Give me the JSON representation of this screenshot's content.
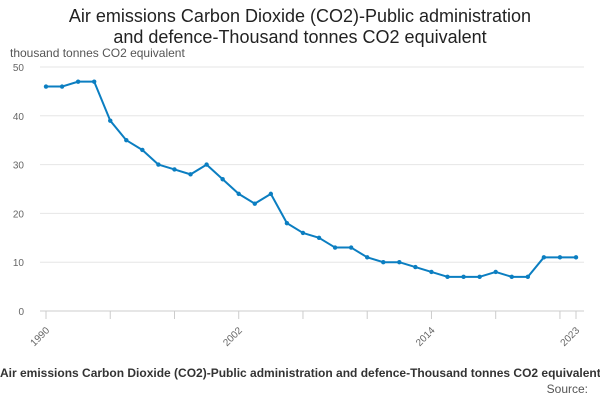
{
  "chart_data": {
    "type": "line",
    "title_line1": "Air emissions Carbon Dioxide (CO2)-Public administration",
    "title_line2": "and defence-Thousand tonnes CO2 equivalent",
    "ylabel": "thousand tonnes CO2 equivalent",
    "xlabel": "",
    "ylim": [
      0,
      50
    ],
    "yticks": [
      0,
      10,
      20,
      30,
      40,
      50
    ],
    "xlim": [
      1990,
      2023
    ],
    "xticks": [
      1990,
      2002,
      2014,
      2023
    ],
    "color": "#0b7ec1",
    "series": [
      {
        "name": "Air emissions Carbon Dioxide (CO2)-Public administration and defence-Thousand tonnes CO2 equivalent",
        "x": [
          1990,
          1991,
          1992,
          1993,
          1994,
          1995,
          1996,
          1997,
          1998,
          1999,
          2000,
          2001,
          2002,
          2003,
          2004,
          2005,
          2006,
          2007,
          2008,
          2009,
          2010,
          2011,
          2012,
          2013,
          2014,
          2015,
          2016,
          2017,
          2018,
          2019,
          2020,
          2021,
          2022,
          2023
        ],
        "values": [
          46,
          46,
          47,
          47,
          39,
          35,
          33,
          30,
          29,
          28,
          30,
          27,
          24,
          22,
          24,
          18,
          16,
          15,
          13,
          13,
          11,
          10,
          10,
          9,
          8,
          7,
          7,
          7,
          8,
          7,
          7,
          11,
          11,
          11
        ]
      }
    ]
  },
  "legend_label": "Air emissions Carbon Dioxide (CO2)-Public administration and defence-Thousand tonnes CO2 equivalent",
  "source_label": "Source:"
}
